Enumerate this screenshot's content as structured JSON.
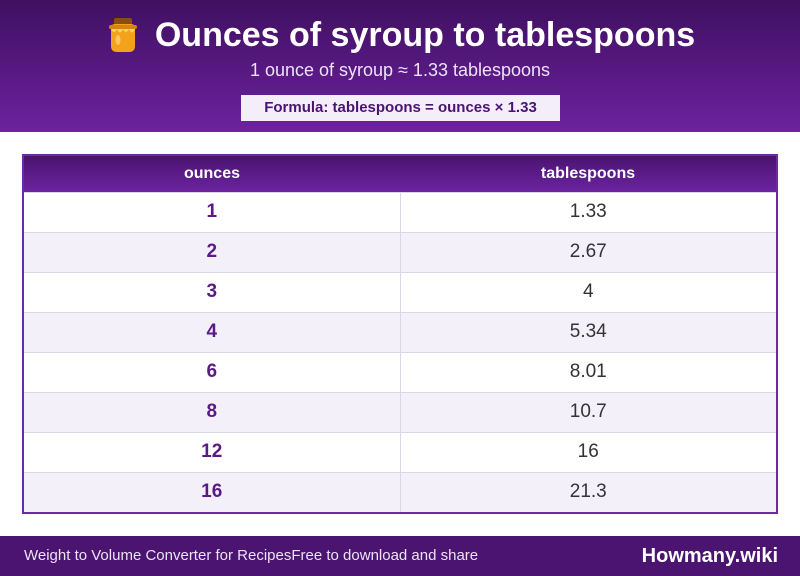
{
  "header": {
    "title": "Ounces of syroup to tablespoons",
    "icon": "honey-pot-icon",
    "subtitle": "1 ounce of syroup ≈ 1.33 tablespoons",
    "formula": "Formula: tablespoons = ounces × 1.33"
  },
  "table": {
    "columns": [
      "ounces",
      "tablespoons"
    ],
    "rows": [
      {
        "ounces": "1",
        "tablespoons": "1.33"
      },
      {
        "ounces": "2",
        "tablespoons": "2.67"
      },
      {
        "ounces": "3",
        "tablespoons": "4"
      },
      {
        "ounces": "4",
        "tablespoons": "5.34"
      },
      {
        "ounces": "6",
        "tablespoons": "8.01"
      },
      {
        "ounces": "8",
        "tablespoons": "10.7"
      },
      {
        "ounces": "12",
        "tablespoons": "16"
      },
      {
        "ounces": "16",
        "tablespoons": "21.3"
      }
    ]
  },
  "footer": {
    "left_text": "Weight to Volume Converter for Recipes",
    "middle_text": "Free to download and share",
    "brand": "Howmany.wiki"
  },
  "colors": {
    "header_purple": "#5a1a86",
    "accent_purple": "#6b2aa3",
    "footer_purple": "#4a1470",
    "row_alt": "#f4f0fa"
  }
}
